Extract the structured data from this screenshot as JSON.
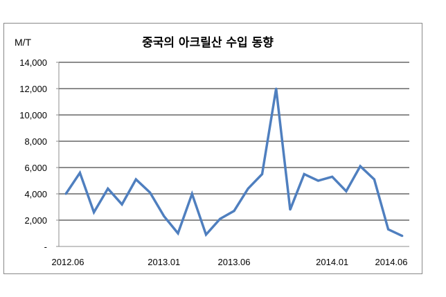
{
  "chart_data": {
    "type": "line",
    "title": "중국의 아크릴산 수입 동향",
    "ylabel": "M/T",
    "xlabel": "",
    "ylim": [
      0,
      14000
    ],
    "yticks": [
      0,
      2000,
      4000,
      6000,
      8000,
      10000,
      12000,
      14000
    ],
    "ytick_labels": [
      "-",
      "2,000",
      "4,000",
      "6,000",
      "8,000",
      "10,000",
      "12,000",
      "14,000"
    ],
    "x": [
      "2012.06",
      "2012.07",
      "2012.08",
      "2012.09",
      "2012.10",
      "2012.11",
      "2012.12",
      "2013.01",
      "2013.02",
      "2013.03",
      "2013.04",
      "2013.05",
      "2013.06",
      "2013.07",
      "2013.08",
      "2013.09",
      "2013.10",
      "2013.11",
      "2013.12",
      "2014.01",
      "2014.02",
      "2014.03",
      "2014.04",
      "2014.05",
      "2014.06"
    ],
    "xtick_labels": [
      "2012.06",
      "2013.01",
      "2013.06",
      "2014.01",
      "2014.06"
    ],
    "values": [
      4000,
      5600,
      2600,
      4400,
      3200,
      5100,
      4100,
      2300,
      1000,
      4000,
      900,
      2100,
      2700,
      4400,
      5500,
      12000,
      2800,
      5500,
      5000,
      5300,
      4200,
      6100,
      5100,
      1300,
      800
    ],
    "grid": "horizontal",
    "legend": "none",
    "line_color": "#4f7fbf",
    "grid_color": "#8c8c8c"
  }
}
